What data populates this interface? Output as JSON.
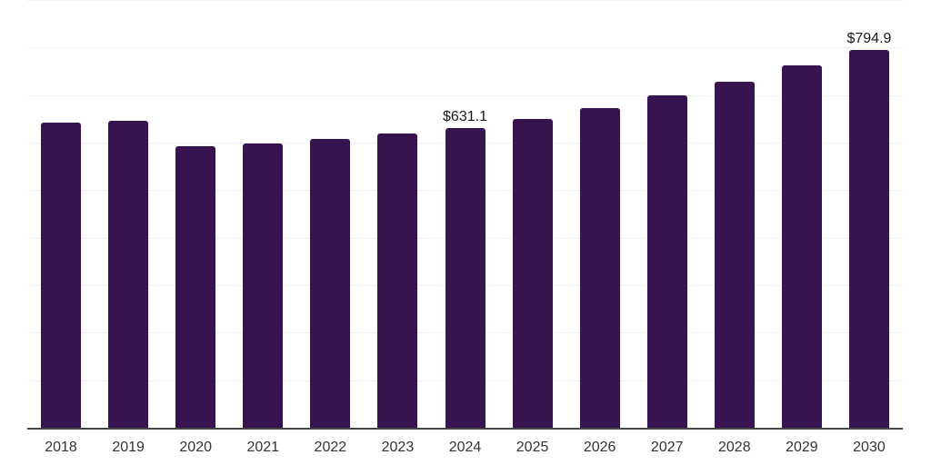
{
  "chart_data": {
    "type": "bar",
    "title": "",
    "xlabel": "",
    "ylabel": "",
    "categories": [
      "2018",
      "2019",
      "2020",
      "2021",
      "2022",
      "2023",
      "2024",
      "2025",
      "2026",
      "2027",
      "2028",
      "2029",
      "2030"
    ],
    "values": [
      643,
      645,
      592,
      599,
      608,
      620,
      631.1,
      650,
      672,
      700,
      729,
      762,
      794.9
    ],
    "data_labels": {
      "2024": "$631.1",
      "2030": "$794.9"
    },
    "ylim": [
      0,
      900
    ],
    "grid_step": 100,
    "grid": true,
    "legend": false,
    "colors": {
      "bar": "#371450",
      "gridline": "#f0f0f2",
      "axis": "#464646",
      "data_label": "#1a1a1a",
      "tick_label": "#333333",
      "background": "#ffffff"
    }
  }
}
